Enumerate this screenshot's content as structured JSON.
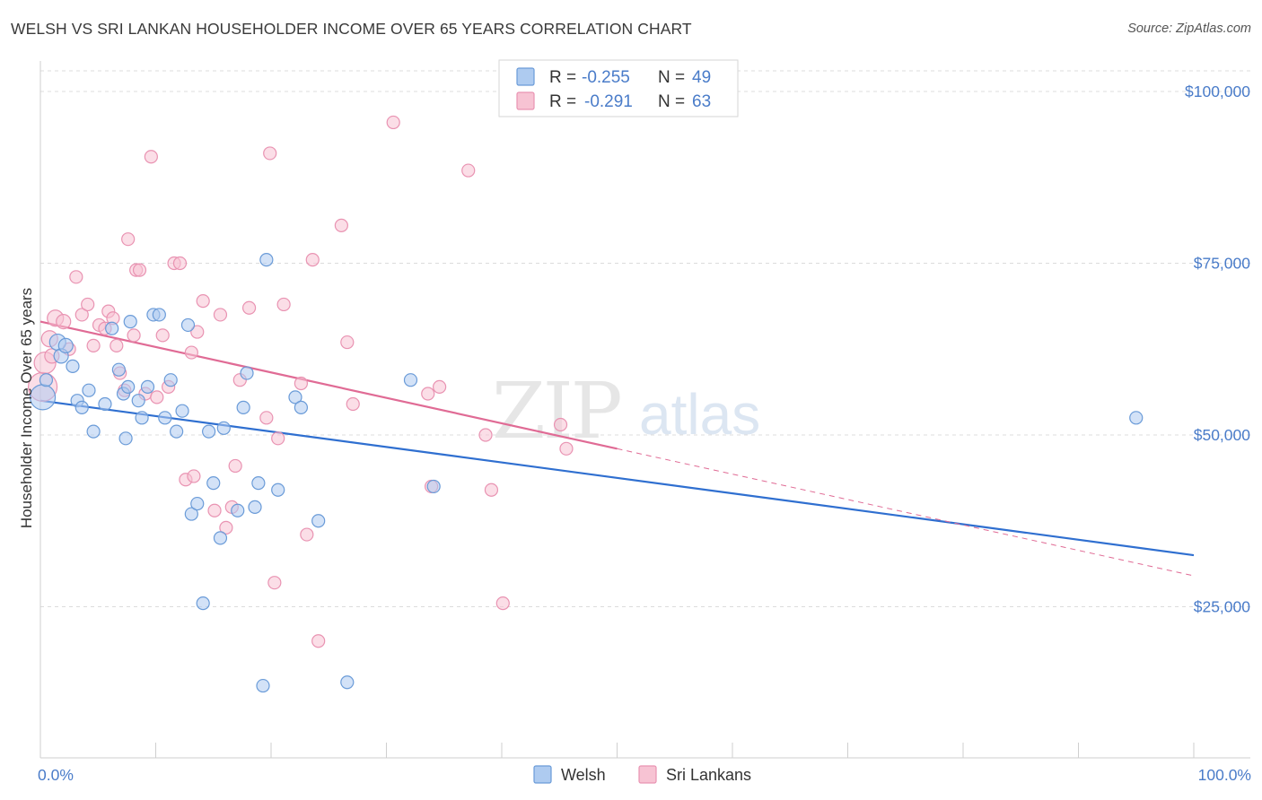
{
  "header": {
    "title": "WELSH VS SRI LANKAN HOUSEHOLDER INCOME OVER 65 YEARS CORRELATION CHART",
    "source": "Source: ZipAtlas.com"
  },
  "watermark": {
    "zip": "ZIP",
    "atlas": "atlas"
  },
  "legend": {
    "r_label": "R =",
    "n_label": "N =",
    "rows": [
      {
        "r": "-0.255",
        "n": "49"
      },
      {
        "r": "-0.291",
        "n": "63"
      }
    ]
  },
  "bottom_legend": [
    "Welsh",
    "Sri Lankans"
  ],
  "colors": {
    "welsh_fill": "#aecbf0",
    "welsh_stroke": "#6a9bd8",
    "welsh_line": "#2f6fd0",
    "srilankan_fill": "#f7c3d3",
    "srilankan_stroke": "#e993b2",
    "srilankan_line": "#e06b95",
    "tick_color": "#4a7cc9"
  },
  "chart_data": {
    "type": "scatter",
    "title": "WELSH VS SRI LANKAN HOUSEHOLDER INCOME OVER 65 YEARS CORRELATION CHART",
    "xlabel": "",
    "ylabel": "Householder Income Over 65 years",
    "x_tick_labels": [
      "0.0%",
      "100.0%"
    ],
    "y_ticks": [
      25000,
      50000,
      75000,
      100000
    ],
    "y_tick_labels": [
      "$25,000",
      "$50,000",
      "$75,000",
      "$100,000"
    ],
    "xlim": [
      0,
      100
    ],
    "ylim": [
      3000,
      103000
    ],
    "grid": true,
    "legend_position": "top-center",
    "series": [
      {
        "name": "Welsh",
        "r": -0.255,
        "n": 49,
        "trend": {
          "x0": 0,
          "y0": 55000,
          "x1": 100,
          "y1": 32500
        },
        "points": [
          [
            0.2,
            55500,
            14
          ],
          [
            1.5,
            63500,
            9
          ],
          [
            1.8,
            61500,
            8
          ],
          [
            2.2,
            63000,
            8
          ],
          [
            2.8,
            60000,
            7
          ],
          [
            3.2,
            55000,
            7
          ],
          [
            3.6,
            54000,
            7
          ],
          [
            4.2,
            56500,
            7
          ],
          [
            4.6,
            50500,
            7
          ],
          [
            5.6,
            54500,
            7
          ],
          [
            6.2,
            65500,
            7
          ],
          [
            6.8,
            59500,
            7
          ],
          [
            7.2,
            56000,
            7
          ],
          [
            7.6,
            57000,
            7
          ],
          [
            7.4,
            49500,
            7
          ],
          [
            7.8,
            66500,
            7
          ],
          [
            8.5,
            55000,
            7
          ],
          [
            8.8,
            52500,
            7
          ],
          [
            9.3,
            57000,
            7
          ],
          [
            9.8,
            67500,
            7
          ],
          [
            10.3,
            67500,
            7
          ],
          [
            10.8,
            52500,
            7
          ],
          [
            11.3,
            58000,
            7
          ],
          [
            11.8,
            50500,
            7
          ],
          [
            12.3,
            53500,
            7
          ],
          [
            12.8,
            66000,
            7
          ],
          [
            13.1,
            38500,
            7
          ],
          [
            13.6,
            40000,
            7
          ],
          [
            14.1,
            25500,
            7
          ],
          [
            14.6,
            50500,
            7
          ],
          [
            15.0,
            43000,
            7
          ],
          [
            15.6,
            35000,
            7
          ],
          [
            15.9,
            51000,
            7
          ],
          [
            17.1,
            39000,
            7
          ],
          [
            17.6,
            54000,
            7
          ],
          [
            17.9,
            59000,
            7
          ],
          [
            18.6,
            39500,
            7
          ],
          [
            18.9,
            43000,
            7
          ],
          [
            19.3,
            13500,
            7
          ],
          [
            19.6,
            75500,
            7
          ],
          [
            20.6,
            42000,
            7
          ],
          [
            22.1,
            55500,
            7
          ],
          [
            22.6,
            54000,
            7
          ],
          [
            24.1,
            37500,
            7
          ],
          [
            26.6,
            14000,
            7
          ],
          [
            32.1,
            58000,
            7
          ],
          [
            34.1,
            42500,
            7
          ],
          [
            95.0,
            52500,
            7
          ],
          [
            0.5,
            58000,
            7
          ]
        ]
      },
      {
        "name": "Sri Lankans",
        "r": -0.291,
        "n": 63,
        "trend": {
          "x0": 0,
          "y0": 66500,
          "x1": 50,
          "y1": 48000,
          "dash_x1": 100,
          "dash_y1": 29500
        },
        "points": [
          [
            0.2,
            57000,
            16
          ],
          [
            0.4,
            60500,
            12
          ],
          [
            0.8,
            64000,
            9
          ],
          [
            1.3,
            67000,
            9
          ],
          [
            2.0,
            66500,
            8
          ],
          [
            3.1,
            73000,
            7
          ],
          [
            3.6,
            67500,
            7
          ],
          [
            4.1,
            69000,
            7
          ],
          [
            4.6,
            63000,
            7
          ],
          [
            5.1,
            66000,
            7
          ],
          [
            5.6,
            65500,
            7
          ],
          [
            5.9,
            68000,
            7
          ],
          [
            6.3,
            67000,
            7
          ],
          [
            6.6,
            63000,
            7
          ],
          [
            6.9,
            59000,
            7
          ],
          [
            7.3,
            56500,
            7
          ],
          [
            7.6,
            78500,
            7
          ],
          [
            8.1,
            64500,
            7
          ],
          [
            8.3,
            74000,
            7
          ],
          [
            8.6,
            74000,
            7
          ],
          [
            9.1,
            56000,
            7
          ],
          [
            9.6,
            90500,
            7
          ],
          [
            10.1,
            55500,
            7
          ],
          [
            10.6,
            64500,
            7
          ],
          [
            11.1,
            57000,
            7
          ],
          [
            11.6,
            75000,
            7
          ],
          [
            12.1,
            75000,
            7
          ],
          [
            12.6,
            43500,
            7
          ],
          [
            13.1,
            62000,
            7
          ],
          [
            13.6,
            65000,
            7
          ],
          [
            14.1,
            69500,
            7
          ],
          [
            15.1,
            39000,
            7
          ],
          [
            15.6,
            67500,
            7
          ],
          [
            16.1,
            36500,
            7
          ],
          [
            16.6,
            39500,
            7
          ],
          [
            16.9,
            45500,
            7
          ],
          [
            17.3,
            58000,
            7
          ],
          [
            18.1,
            68500,
            7
          ],
          [
            19.6,
            52500,
            7
          ],
          [
            19.9,
            91000,
            7
          ],
          [
            20.6,
            49500,
            7
          ],
          [
            20.3,
            28500,
            7
          ],
          [
            21.1,
            69000,
            7
          ],
          [
            22.6,
            57500,
            7
          ],
          [
            23.1,
            35500,
            7
          ],
          [
            23.6,
            75500,
            7
          ],
          [
            24.1,
            20000,
            7
          ],
          [
            26.1,
            80500,
            7
          ],
          [
            26.6,
            63500,
            7
          ],
          [
            27.1,
            54500,
            7
          ],
          [
            30.6,
            95500,
            7
          ],
          [
            33.6,
            56000,
            7
          ],
          [
            33.9,
            42500,
            7
          ],
          [
            34.6,
            57000,
            7
          ],
          [
            37.1,
            88500,
            7
          ],
          [
            38.6,
            50000,
            7
          ],
          [
            39.1,
            42000,
            7
          ],
          [
            40.1,
            25500,
            7
          ],
          [
            45.1,
            51500,
            7
          ],
          [
            45.6,
            48000,
            7
          ],
          [
            1.0,
            61500,
            8
          ],
          [
            2.5,
            62500,
            7
          ],
          [
            13.3,
            44000,
            7
          ]
        ]
      }
    ]
  }
}
